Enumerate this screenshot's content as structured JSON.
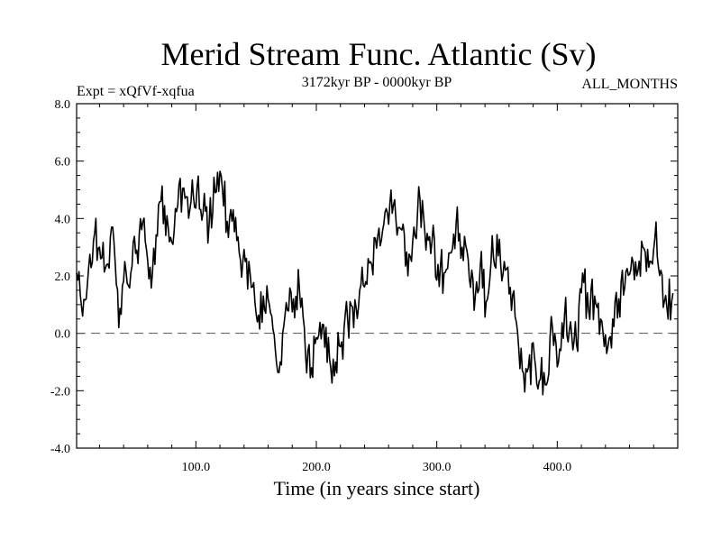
{
  "chart_data": {
    "type": "line",
    "title": "Merid Stream Func. Atlantic (Sv)",
    "subtitle_left": "Expt = xQfVf-xqfua",
    "subtitle_center": "3172kyr BP - 0000kyr BP",
    "subtitle_right": "ALL_MONTHS",
    "xlabel": "Time (in years since start)",
    "ylabel": "",
    "xlim": [
      1,
      500
    ],
    "ylim": [
      -4.0,
      8.0
    ],
    "x_ticks": [
      100,
      200,
      300,
      400
    ],
    "x_tick_labels": [
      "100.0",
      "200.0",
      "300.0",
      "400.0"
    ],
    "y_ticks": [
      -4,
      -2,
      0,
      2,
      4,
      6,
      8
    ],
    "y_tick_labels": [
      "-4.0",
      "-2.0",
      "0.0",
      "2.0",
      "4.0",
      "6.0",
      "8.0"
    ],
    "reference_line": {
      "y": 0,
      "style": "dashed"
    },
    "series": [
      {
        "name": "Merid Stream Func. Atlantic",
        "x_start": 1,
        "x_step": 5,
        "values": [
          2.1,
          0.6,
          2.3,
          3.5,
          2.6,
          2.4,
          3.7,
          0.2,
          2.5,
          2.1,
          2.9,
          3.9,
          1.9,
          2.4,
          4.6,
          4.1,
          3.1,
          5.2,
          4.7,
          4.6,
          5.1,
          4.2,
          3.8,
          4.9,
          5.5,
          3.9,
          4.3,
          2.8,
          2.5,
          1.6,
          0.4,
          1.3,
          1.0,
          -0.6,
          -1.1,
          0.8,
          1.2,
          1.5,
          -0.7,
          -1.2,
          -0.2,
          0.3,
          -0.9,
          -1.0,
          -0.3,
          0.5,
          0.2,
          1.5,
          1.8,
          2.4,
          3.4,
          3.8,
          4.5,
          4.0,
          3.6,
          2.0,
          3.7,
          4.7,
          2.9,
          3.2,
          2.4,
          2.1,
          2.8,
          3.8,
          3.0,
          2.6,
          0.8,
          2.3,
          1.1,
          3.4,
          2.7,
          2.5,
          1.6,
          0.4,
          -1.3,
          -1.2,
          -0.8,
          -1.6,
          -1.8,
          0.2,
          -1.0,
          0.6,
          0.4,
          -0.4,
          2.1,
          0.8,
          1.3,
          0.5,
          -0.7,
          0.5,
          1.2,
          1.6,
          2.2,
          2.0,
          3.0,
          2.3,
          3.3,
          2.2,
          0.9,
          1.4
        ]
      }
    ]
  }
}
